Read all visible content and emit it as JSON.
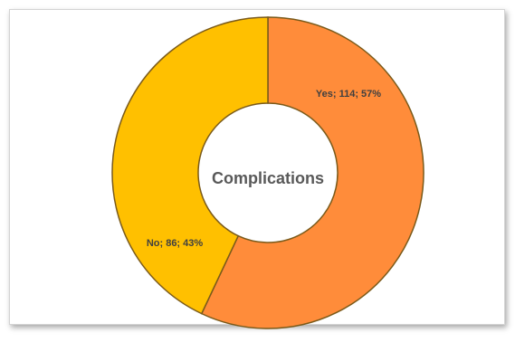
{
  "chart_data": {
    "type": "pie",
    "center_label": "Complications",
    "slices": [
      {
        "category": "Yes",
        "value": 114,
        "percent": "57%",
        "color": "#FF8C3A"
      },
      {
        "category": "No",
        "value": 86,
        "percent": "43%",
        "color": "#FFC000"
      }
    ],
    "colors": {
      "border": "#7a5a1a"
    }
  }
}
